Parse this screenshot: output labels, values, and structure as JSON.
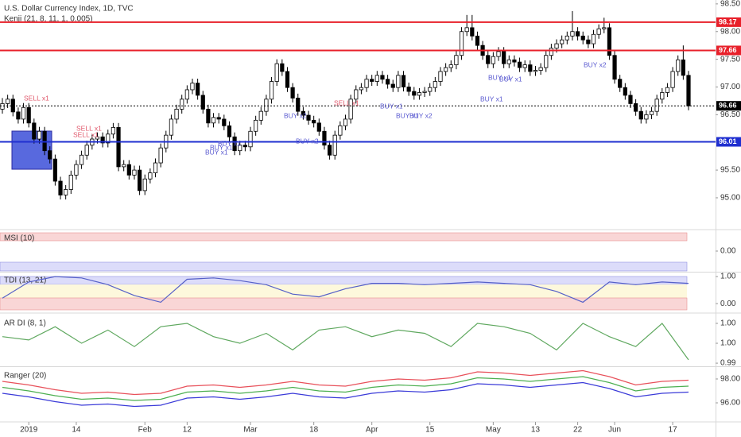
{
  "chart_data": [
    {
      "type": "candlestick",
      "title": "U.S. Dollar Currency Index, 1D, TVC",
      "subtitle": "Kenji (21, 8, 11, 1, 0.005)",
      "categories": [
        null,
        null,
        null,
        null,
        null,
        "2019",
        null,
        null,
        null,
        null,
        null,
        null,
        null,
        null,
        "14",
        null,
        null,
        null,
        null,
        null,
        null,
        null,
        null,
        null,
        null,
        null,
        null,
        "Feb",
        null,
        null,
        null,
        null,
        null,
        null,
        null,
        "12",
        null,
        null,
        null,
        null,
        null,
        null,
        null,
        null,
        null,
        null,
        null,
        "Mar",
        null,
        null,
        null,
        null,
        null,
        null,
        null,
        null,
        null,
        null,
        null,
        "18",
        null,
        null,
        null,
        null,
        null,
        null,
        null,
        null,
        null,
        null,
        "Apr",
        null,
        null,
        null,
        null,
        null,
        null,
        null,
        null,
        null,
        null,
        "15",
        null,
        null,
        null,
        null,
        null,
        null,
        null,
        null,
        null,
        null,
        null,
        "May",
        null,
        null,
        null,
        null,
        null,
        null,
        null,
        "13",
        null,
        null,
        null,
        null,
        null,
        null,
        null,
        "22",
        null,
        null,
        null,
        null,
        null,
        null,
        "Jun",
        null,
        null,
        null,
        null,
        null,
        null,
        null,
        null,
        null,
        null,
        "17",
        null,
        null,
        null
      ],
      "open": [
        96.6,
        96.7,
        96.78,
        96.55,
        96.42,
        96.63,
        96.35,
        96.06,
        96.2,
        95.85,
        95.7,
        95.3,
        95.05,
        95.15,
        95.41,
        95.6,
        95.77,
        95.95,
        96.06,
        96.1,
        95.99,
        96.15,
        96.27,
        95.56,
        95.6,
        95.41,
        95.5,
        95.13,
        95.34,
        95.45,
        95.63,
        95.9,
        96.13,
        96.42,
        96.6,
        96.78,
        96.95,
        97.07,
        96.85,
        96.6,
        96.35,
        96.45,
        96.42,
        96.3,
        96.1,
        95.85,
        95.95,
        95.92,
        96.2,
        96.4,
        96.56,
        96.78,
        97.1,
        97.42,
        97.28,
        96.99,
        96.8,
        96.56,
        96.49,
        96.4,
        96.35,
        96.2,
        95.95,
        95.77,
        96.13,
        96.3,
        96.42,
        96.78,
        96.95,
        96.99,
        97.14,
        97.1,
        97.21,
        97.14,
        97.05,
        96.99,
        97.21,
        97.0,
        96.92,
        96.85,
        96.9,
        96.92,
        96.99,
        97.1,
        97.28,
        97.35,
        97.4,
        97.57,
        98.0,
        98.07,
        97.92,
        97.75,
        97.57,
        97.42,
        97.55,
        97.64,
        97.42,
        97.49,
        97.45,
        97.35,
        97.4,
        97.28,
        97.3,
        97.35,
        97.57,
        97.7,
        97.78,
        97.85,
        97.92,
        98.0,
        97.92,
        97.85,
        97.78,
        97.95,
        98.05,
        98.07,
        97.57,
        97.14,
        96.99,
        96.85,
        96.7,
        96.56,
        96.42,
        96.5,
        96.56,
        96.78,
        96.9,
        96.99,
        97.28,
        97.49,
        97.21
      ],
      "high": [
        96.8,
        96.86,
        96.86,
        96.63,
        96.71,
        96.71,
        96.43,
        96.28,
        96.28,
        95.93,
        95.78,
        95.38,
        95.23,
        95.49,
        95.68,
        95.85,
        96.03,
        96.14,
        96.18,
        96.18,
        96.23,
        96.35,
        96.35,
        95.68,
        95.68,
        95.58,
        95.58,
        95.42,
        95.53,
        95.71,
        95.98,
        96.21,
        96.5,
        96.68,
        96.86,
        97.03,
        97.15,
        97.15,
        96.93,
        96.68,
        96.53,
        96.53,
        96.5,
        96.38,
        96.18,
        96.03,
        96.03,
        96.28,
        96.48,
        96.64,
        96.86,
        97.18,
        97.5,
        97.5,
        97.36,
        97.07,
        96.88,
        96.64,
        96.57,
        96.48,
        96.43,
        96.28,
        96.03,
        96.21,
        96.38,
        96.5,
        96.86,
        97.03,
        97.07,
        97.22,
        97.22,
        97.29,
        97.29,
        97.22,
        97.13,
        97.29,
        97.29,
        97.08,
        97.0,
        96.98,
        97.0,
        97.07,
        97.18,
        97.36,
        97.43,
        97.48,
        97.65,
        98.08,
        98.3,
        98.3,
        98.0,
        97.83,
        97.65,
        97.63,
        97.72,
        97.72,
        97.57,
        97.57,
        97.53,
        97.48,
        97.48,
        97.38,
        97.43,
        97.65,
        97.78,
        97.86,
        97.93,
        98.0,
        98.37,
        98.08,
        98.0,
        97.93,
        98.03,
        98.13,
        98.25,
        98.15,
        97.65,
        97.22,
        97.07,
        96.93,
        96.78,
        96.64,
        96.58,
        96.64,
        96.86,
        96.98,
        97.07,
        97.36,
        97.57,
        97.75,
        97.29
      ],
      "low": [
        96.52,
        96.62,
        96.47,
        96.34,
        96.34,
        96.27,
        95.98,
        95.98,
        95.77,
        95.62,
        95.22,
        94.97,
        94.97,
        95.07,
        95.33,
        95.52,
        95.69,
        95.87,
        95.98,
        95.91,
        95.91,
        96.07,
        95.48,
        95.48,
        95.33,
        95.33,
        95.05,
        95.05,
        95.26,
        95.37,
        95.55,
        95.82,
        96.05,
        96.34,
        96.52,
        96.7,
        96.87,
        96.77,
        96.52,
        96.27,
        96.27,
        96.34,
        96.22,
        96.02,
        95.77,
        95.77,
        95.84,
        95.84,
        96.12,
        96.32,
        96.48,
        96.7,
        97.02,
        97.2,
        96.91,
        96.72,
        96.48,
        96.41,
        96.32,
        96.27,
        96.12,
        95.87,
        95.69,
        95.69,
        96.05,
        96.22,
        96.34,
        96.7,
        96.87,
        96.91,
        97.02,
        97.02,
        97.06,
        96.97,
        96.91,
        96.91,
        96.92,
        96.84,
        96.77,
        96.77,
        96.82,
        96.84,
        96.91,
        97.02,
        97.2,
        97.27,
        97.32,
        97.49,
        97.92,
        97.84,
        97.67,
        97.49,
        97.34,
        97.34,
        97.47,
        97.34,
        97.34,
        97.37,
        97.27,
        97.27,
        97.2,
        97.2,
        97.22,
        97.27,
        97.49,
        97.62,
        97.7,
        97.77,
        97.84,
        97.84,
        97.77,
        97.7,
        97.7,
        97.87,
        97.97,
        97.49,
        97.06,
        96.91,
        96.77,
        96.62,
        96.48,
        96.34,
        96.34,
        96.42,
        96.48,
        96.7,
        96.82,
        96.91,
        97.2,
        97.13,
        96.58
      ],
      "close": [
        96.7,
        96.78,
        96.55,
        96.42,
        96.63,
        96.35,
        96.06,
        96.2,
        95.85,
        95.7,
        95.3,
        95.05,
        95.15,
        95.41,
        95.6,
        95.77,
        95.95,
        96.06,
        96.1,
        95.99,
        96.15,
        96.27,
        95.56,
        95.6,
        95.41,
        95.5,
        95.13,
        95.34,
        95.45,
        95.63,
        95.9,
        96.13,
        96.42,
        96.6,
        96.78,
        96.95,
        97.07,
        96.85,
        96.6,
        96.35,
        96.45,
        96.42,
        96.3,
        96.1,
        95.85,
        95.95,
        95.92,
        96.2,
        96.4,
        96.56,
        96.78,
        97.1,
        97.42,
        97.28,
        96.99,
        96.8,
        96.56,
        96.49,
        96.4,
        96.35,
        96.2,
        95.95,
        95.77,
        96.13,
        96.3,
        96.42,
        96.78,
        96.95,
        96.99,
        97.14,
        97.1,
        97.21,
        97.14,
        97.05,
        96.99,
        97.21,
        97.0,
        96.92,
        96.85,
        96.9,
        96.92,
        96.99,
        97.1,
        97.28,
        97.35,
        97.4,
        97.57,
        98.0,
        98.07,
        97.92,
        97.75,
        97.57,
        97.42,
        97.55,
        97.64,
        97.42,
        97.49,
        97.45,
        97.35,
        97.4,
        97.28,
        97.3,
        97.35,
        97.57,
        97.7,
        97.78,
        97.85,
        97.92,
        98.0,
        97.92,
        97.85,
        97.78,
        97.95,
        98.05,
        98.07,
        97.57,
        97.14,
        96.99,
        96.85,
        96.7,
        96.56,
        96.42,
        96.5,
        96.56,
        96.78,
        96.9,
        96.99,
        97.28,
        97.49,
        97.21,
        96.66
      ],
      "ylim": [
        94.44,
        98.57
      ],
      "yticks": [
        {
          "value": 95,
          "label": "95.00"
        },
        {
          "value": 95.5,
          "label": "95.50"
        },
        {
          "value": 96.5,
          "label": "96.50"
        },
        {
          "value": 97,
          "label": "97.00"
        },
        {
          "value": 97.5,
          "label": "97.50"
        },
        {
          "value": 98,
          "label": "98.00"
        },
        {
          "value": 98.5,
          "label": "98.50"
        }
      ],
      "hlines": [
        {
          "value": 98.17,
          "color": "#e8202a",
          "style": "solid"
        },
        {
          "value": 97.66,
          "color": "#e8202a",
          "style": "solid"
        },
        {
          "value": 96.66,
          "color": "#000000",
          "style": "dashed"
        },
        {
          "value": 96.01,
          "color": "#1f2fd0",
          "style": "solid"
        }
      ],
      "annotations": [
        "SELL x1",
        "SELL x1",
        "SELL x1",
        "BUY x1",
        "BUY x1",
        "BUY x1",
        "BUY x2",
        "BUY x2",
        "SELL x1",
        "BUY x1",
        "BUY x1",
        "BUY x2",
        "BUY x1",
        "BUY x1",
        "BUY x1",
        "BUY x2"
      ]
    },
    {
      "type": "line",
      "title": "MSI (10)",
      "ylim": [
        -1,
        1
      ],
      "yticks": [
        {
          "value": 0,
          "label": "0.00"
        }
      ]
    },
    {
      "type": "line",
      "title": "TDI (13, 21)",
      "ylim": [
        -0.29,
        1.15
      ],
      "yticks": [
        {
          "value": 1,
          "label": "1.00"
        },
        {
          "value": 0,
          "label": "0.00"
        }
      ],
      "series": [
        {
          "color": "#5560c8",
          "values": [
            0.2,
            0.8,
            1.0,
            0.95,
            0.7,
            0.3,
            0.05,
            0.9,
            0.95,
            0.85,
            0.7,
            0.35,
            0.25,
            0.55,
            0.75,
            0.75,
            0.7,
            0.75,
            0.8,
            0.75,
            0.7,
            0.45,
            0.05,
            0.8,
            0.7,
            0.8,
            0.75
          ]
        }
      ]
    },
    {
      "type": "line",
      "title": "AR DI (8, 1)",
      "ylim": [
        0.9913,
        1.0064
      ],
      "yticks": [
        {
          "value": 1.004,
          "label": "1.00"
        },
        {
          "value": 0.998,
          "label": "1.00"
        },
        {
          "value": 0.992,
          "label": "0.99"
        }
      ],
      "series": [
        {
          "color": "#5fa85f",
          "values": [
            1.0,
            0.999,
            1.003,
            0.998,
            1.002,
            0.997,
            1.003,
            1.004,
            1.0,
            0.998,
            1.001,
            0.996,
            1.002,
            1.003,
            1.0,
            1.002,
            1.001,
            0.997,
            1.004,
            1.003,
            1.001,
            0.996,
            1.004,
            1.0,
            0.997,
            1.004,
            0.993
          ]
        }
      ]
    },
    {
      "type": "line",
      "title": "Ranger (20)",
      "ylim": [
        94.47,
        98.93
      ],
      "yticks": [
        {
          "value": 98,
          "label": "98.00"
        },
        {
          "value": 96,
          "label": "96.00"
        }
      ],
      "series": [
        {
          "color": "#e8505a",
          "values": [
            97.8,
            97.5,
            97.1,
            96.8,
            96.9,
            96.7,
            96.8,
            97.4,
            97.5,
            97.3,
            97.5,
            97.8,
            97.5,
            97.4,
            97.8,
            98.0,
            97.9,
            98.1,
            98.6,
            98.5,
            98.3,
            98.5,
            98.7,
            98.2,
            97.5,
            97.8,
            97.9
          ]
        },
        {
          "color": "#4caf50",
          "values": [
            97.3,
            97.0,
            96.6,
            96.3,
            96.4,
            96.2,
            96.3,
            96.9,
            97.0,
            96.8,
            97.0,
            97.3,
            97.0,
            96.9,
            97.3,
            97.5,
            97.4,
            97.6,
            98.1,
            98.0,
            97.8,
            98.0,
            98.2,
            97.7,
            97.0,
            97.3,
            97.4
          ]
        },
        {
          "color": "#3a3ad8",
          "values": [
            96.8,
            96.5,
            96.1,
            95.8,
            95.9,
            95.7,
            95.8,
            96.4,
            96.5,
            96.3,
            96.5,
            96.8,
            96.5,
            96.4,
            96.8,
            97.0,
            96.9,
            97.1,
            97.6,
            97.5,
            97.3,
            97.5,
            97.7,
            97.2,
            96.5,
            96.8,
            96.9
          ]
        }
      ]
    }
  ]
}
